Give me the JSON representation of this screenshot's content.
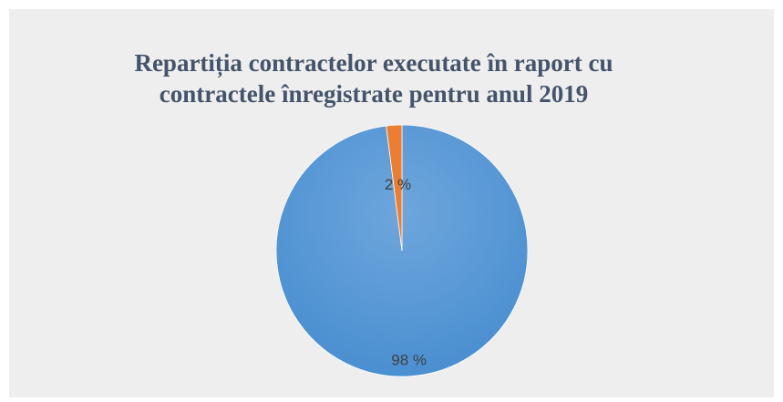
{
  "chart_data": {
    "type": "pie",
    "title_lines": [
      "Repartiția contractelor executate în raport cu",
      "contractele înregistrate pentru anul 2019"
    ],
    "values": [
      98,
      2
    ],
    "data_labels": [
      "98 %",
      "2 %"
    ],
    "colors": [
      "#5b9bd5",
      "#ed7d31"
    ],
    "legend": "none"
  }
}
